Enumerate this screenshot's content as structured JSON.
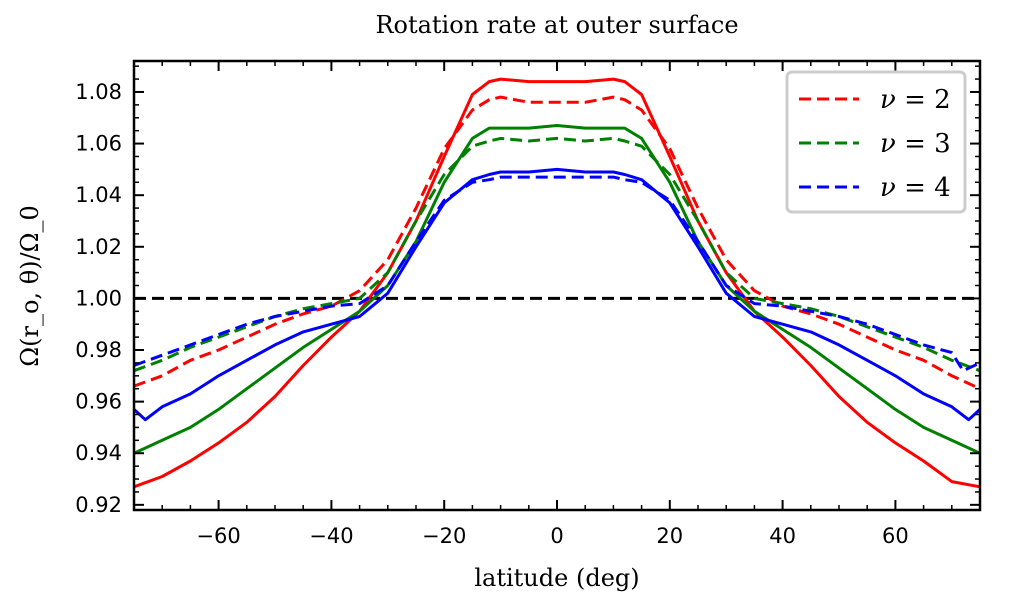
{
  "chart_data": {
    "type": "line",
    "title": "Rotation rate at outer surface",
    "xlabel": "latitude (deg)",
    "ylabel": "Ω(r_o, θ)/Ω_0",
    "xlim": [
      -75,
      75
    ],
    "ylim": [
      0.918,
      1.092
    ],
    "x_ticks": [
      -60,
      -40,
      -20,
      0,
      20,
      40,
      60
    ],
    "x_tick_labels": [
      "−60",
      "−40",
      "−20",
      "0",
      "20",
      "40",
      "60"
    ],
    "y_ticks": [
      0.92,
      0.94,
      0.96,
      0.98,
      1.0,
      1.02,
      1.04,
      1.06,
      1.08
    ],
    "y_tick_labels": [
      "0.92",
      "0.94",
      "0.96",
      "0.98",
      "1.00",
      "1.02",
      "1.04",
      "1.06",
      "1.08"
    ],
    "reference_line": {
      "y": 1.0,
      "color": "#000000",
      "style": "dashed"
    },
    "legend": {
      "placement": "top-right",
      "entries": [
        {
          "label_prefix": "ν",
          "label_eq": " = ",
          "label_value": "2",
          "color": "#ff0000",
          "style": "dashed"
        },
        {
          "label_prefix": "ν",
          "label_eq": " = ",
          "label_value": "3",
          "color": "#008000",
          "style": "dashed"
        },
        {
          "label_prefix": "ν",
          "label_eq": " = ",
          "label_value": "4",
          "color": "#0000ff",
          "style": "dashed"
        }
      ]
    },
    "series": [
      {
        "name": "nu2-solid",
        "color": "#ff0000",
        "style": "solid",
        "x": [
          -75,
          -70,
          -65,
          -60,
          -55,
          -50,
          -45,
          -40,
          -35,
          -30,
          -25,
          -20,
          -15,
          -12,
          -10,
          -5,
          0,
          5,
          10,
          12,
          15,
          20,
          25,
          30,
          35,
          40,
          45,
          50,
          55,
          60,
          65,
          70,
          75
        ],
        "y": [
          0.927,
          0.931,
          0.937,
          0.944,
          0.952,
          0.962,
          0.974,
          0.985,
          0.995,
          1.01,
          1.03,
          1.055,
          1.079,
          1.084,
          1.085,
          1.084,
          1.084,
          1.084,
          1.085,
          1.084,
          1.079,
          1.055,
          1.03,
          1.01,
          0.995,
          0.985,
          0.974,
          0.962,
          0.952,
          0.944,
          0.937,
          0.929,
          0.927
        ]
      },
      {
        "name": "nu2-dashed",
        "color": "#ff0000",
        "style": "dashed",
        "x": [
          -75,
          -70,
          -65,
          -60,
          -55,
          -50,
          -45,
          -40,
          -35,
          -30,
          -25,
          -20,
          -15,
          -12,
          -10,
          -5,
          0,
          5,
          10,
          12,
          15,
          20,
          25,
          30,
          35,
          40,
          45,
          50,
          55,
          60,
          65,
          70,
          75
        ],
        "y": [
          0.966,
          0.97,
          0.976,
          0.98,
          0.985,
          0.99,
          0.994,
          0.997,
          1.003,
          1.015,
          1.035,
          1.058,
          1.073,
          1.077,
          1.078,
          1.076,
          1.076,
          1.076,
          1.078,
          1.077,
          1.073,
          1.058,
          1.035,
          1.015,
          1.003,
          0.997,
          0.994,
          0.99,
          0.985,
          0.98,
          0.976,
          0.97,
          0.965
        ]
      },
      {
        "name": "nu3-solid",
        "color": "#008000",
        "style": "solid",
        "x": [
          -75,
          -70,
          -65,
          -60,
          -55,
          -50,
          -45,
          -40,
          -35,
          -30,
          -25,
          -20,
          -15,
          -12,
          -10,
          -5,
          0,
          5,
          10,
          12,
          15,
          20,
          25,
          30,
          35,
          40,
          45,
          50,
          55,
          60,
          65,
          70,
          75
        ],
        "y": [
          0.94,
          0.945,
          0.95,
          0.957,
          0.965,
          0.973,
          0.981,
          0.988,
          0.995,
          1.005,
          1.022,
          1.045,
          1.062,
          1.066,
          1.066,
          1.066,
          1.067,
          1.066,
          1.066,
          1.066,
          1.062,
          1.045,
          1.022,
          1.005,
          0.995,
          0.988,
          0.981,
          0.973,
          0.965,
          0.957,
          0.95,
          0.945,
          0.94
        ]
      },
      {
        "name": "nu3-dashed",
        "color": "#008000",
        "style": "dashed",
        "x": [
          -75,
          -70,
          -65,
          -60,
          -55,
          -50,
          -45,
          -40,
          -35,
          -30,
          -25,
          -20,
          -15,
          -12,
          -10,
          -5,
          0,
          5,
          10,
          12,
          15,
          20,
          25,
          30,
          35,
          40,
          45,
          50,
          55,
          60,
          65,
          70,
          75
        ],
        "y": [
          0.972,
          0.976,
          0.981,
          0.985,
          0.989,
          0.993,
          0.996,
          0.998,
          1.0,
          1.01,
          1.03,
          1.048,
          1.059,
          1.061,
          1.062,
          1.061,
          1.062,
          1.061,
          1.062,
          1.061,
          1.059,
          1.048,
          1.03,
          1.01,
          1.0,
          0.998,
          0.996,
          0.993,
          0.989,
          0.985,
          0.981,
          0.976,
          0.972
        ]
      },
      {
        "name": "nu4-solid",
        "color": "#0000ff",
        "style": "solid",
        "x": [
          -75,
          -73,
          -70,
          -65,
          -60,
          -55,
          -50,
          -45,
          -40,
          -35,
          -30,
          -25,
          -20,
          -15,
          -12,
          -10,
          -5,
          0,
          5,
          10,
          12,
          15,
          20,
          25,
          30,
          35,
          40,
          45,
          50,
          55,
          60,
          65,
          70,
          73,
          75
        ],
        "y": [
          0.957,
          0.953,
          0.958,
          0.963,
          0.97,
          0.976,
          0.982,
          0.987,
          0.99,
          0.993,
          1.002,
          1.02,
          1.037,
          1.046,
          1.048,
          1.049,
          1.049,
          1.05,
          1.049,
          1.049,
          1.048,
          1.046,
          1.037,
          1.02,
          1.002,
          0.993,
          0.99,
          0.987,
          0.982,
          0.976,
          0.97,
          0.963,
          0.958,
          0.953,
          0.957
        ]
      },
      {
        "name": "nu4-dashed",
        "color": "#0000ff",
        "style": "dashed",
        "x": [
          -75,
          -70,
          -65,
          -60,
          -55,
          -50,
          -45,
          -40,
          -35,
          -30,
          -25,
          -20,
          -15,
          -12,
          -10,
          -5,
          0,
          5,
          10,
          12,
          15,
          20,
          25,
          30,
          35,
          40,
          45,
          50,
          55,
          60,
          65,
          70,
          72,
          75
        ],
        "y": [
          0.974,
          0.978,
          0.982,
          0.986,
          0.99,
          0.993,
          0.995,
          0.997,
          0.998,
          1.005,
          1.022,
          1.038,
          1.045,
          1.046,
          1.047,
          1.047,
          1.047,
          1.047,
          1.047,
          1.046,
          1.045,
          1.038,
          1.022,
          1.005,
          0.998,
          0.997,
          0.995,
          0.993,
          0.99,
          0.986,
          0.982,
          0.979,
          0.972,
          0.975
        ]
      }
    ]
  }
}
